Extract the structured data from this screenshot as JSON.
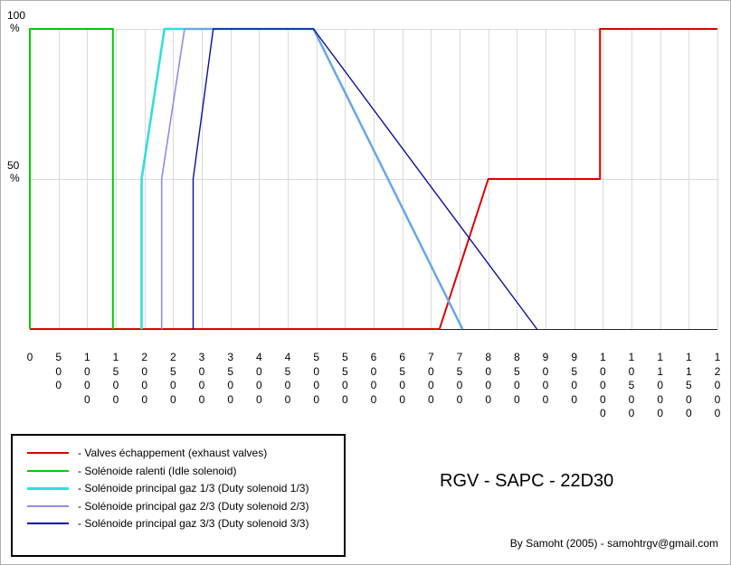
{
  "chart_data": {
    "type": "line",
    "title": "RGV - SAPC - 22D30",
    "xlabel": "",
    "ylabel": "",
    "xlim": [
      0,
      12000
    ],
    "ylim": [
      0,
      100
    ],
    "grid": true,
    "x_ticks": [
      "0",
      "500",
      "1000",
      "1500",
      "2000",
      "2500",
      "3000",
      "3500",
      "4000",
      "4500",
      "5000",
      "5500",
      "6000",
      "6500",
      "7000",
      "7500",
      "8000",
      "8500",
      "9000",
      "9500",
      "10000",
      "10500",
      "11000",
      "11500",
      "12000"
    ],
    "y_ticks": [
      {
        "value": 100,
        "label": [
          "100",
          "%"
        ]
      },
      {
        "value": 50,
        "label": [
          "50",
          "%"
        ]
      }
    ],
    "series": [
      {
        "name": "- Valves échappement (exhaust valves)",
        "color": "#dd0000",
        "points": [
          [
            0,
            0
          ],
          [
            7150,
            0
          ],
          [
            8000,
            50
          ],
          [
            9950,
            50
          ],
          [
            9950,
            100
          ],
          [
            12000,
            100
          ]
        ]
      },
      {
        "name": "- Solénoide ralenti (Idle solenoid)",
        "color": "#00cc00",
        "points": [
          [
            0,
            0
          ],
          [
            0,
            100
          ],
          [
            1450,
            100
          ],
          [
            1450,
            0
          ]
        ]
      },
      {
        "name": "- Solénoide principal gaz 1/3 (Duty solenoid 1/3)",
        "color": "#33dddd",
        "points": [
          [
            1950,
            0
          ],
          [
            1950,
            50
          ],
          [
            2350,
            100
          ],
          [
            4950,
            100
          ],
          [
            7550,
            0
          ]
        ]
      },
      {
        "name": "- Solénoide principal gaz 2/3 (Duty solenoid 2/3)",
        "color": "#8e8ee6",
        "points": [
          [
            2300,
            0
          ],
          [
            2300,
            50
          ],
          [
            2700,
            100
          ],
          [
            4950,
            100
          ],
          [
            7550,
            0
          ]
        ]
      },
      {
        "name": "- Solénoide principal gaz 3/3 (Duty solenoid 3/3)",
        "color": "#0d0da0",
        "points": [
          [
            2850,
            0
          ],
          [
            2850,
            50
          ],
          [
            3200,
            100
          ],
          [
            4950,
            100
          ],
          [
            8850,
            0
          ]
        ]
      }
    ]
  },
  "credit": "By Samoht (2005) - samohtrgv@gmail.com"
}
